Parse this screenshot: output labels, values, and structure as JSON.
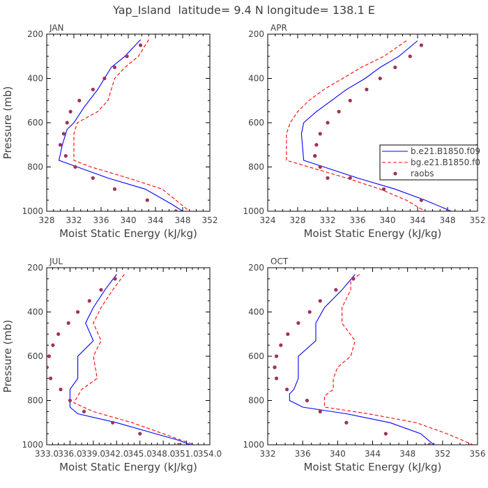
{
  "figure_title": "Yap_Island  latitude= 9.4 N longitude= 138.1 E",
  "legend": {
    "entries": [
      {
        "label": "b.e21.B1850.f09",
        "color": "#0000ff",
        "style": "solid"
      },
      {
        "label": "bg.e21.B1850.f0",
        "color": "#ff0000",
        "style": "dashed"
      },
      {
        "label": "raobs",
        "color": "#a0335a",
        "style": "marker"
      }
    ]
  },
  "chart_data": [
    {
      "type": "line",
      "panel_label": "JAN",
      "xlabel": "Moist Static Energy (kJ/kg)",
      "ylabel": "Pressure (mb)",
      "xlim": [
        328,
        352
      ],
      "ylim": [
        1000,
        200
      ],
      "y_reversed": true,
      "xticks": [
        "328",
        "332",
        "336",
        "340",
        "344",
        "348",
        "352"
      ],
      "yticks": [
        "200",
        "400",
        "600",
        "800",
        "1000"
      ],
      "series": [
        {
          "name": "b.e21.B1850.f09",
          "color": "#0000ff",
          "style": "solid",
          "x": [
            341.8,
            339.5,
            337.5,
            335.5,
            333.5,
            332.0,
            331.0,
            330.3,
            329.8,
            332.5,
            337.0,
            342.5,
            346.5,
            348.0
          ],
          "y": [
            225,
            300,
            350,
            450,
            530,
            600,
            630,
            700,
            770,
            800,
            850,
            900,
            970,
            1000
          ]
        },
        {
          "name": "bg.e21.B1850.f0",
          "color": "#ff0000",
          "style": "dashed",
          "x": [
            343.0,
            341.5,
            339.5,
            338.0,
            337.0,
            335.5,
            332.5,
            332.0,
            332.0,
            334.5,
            340.0,
            345.0,
            349.0
          ],
          "y": [
            225,
            300,
            350,
            400,
            500,
            550,
            600,
            650,
            770,
            800,
            850,
            900,
            1000
          ]
        },
        {
          "name": "raobs",
          "color": "#a0335a",
          "style": "marker",
          "x": [
            341.8,
            339.8,
            338.0,
            336.5,
            334.8,
            332.8,
            331.5,
            331.0,
            330.5,
            330.0,
            330.8,
            332.2,
            334.8,
            338.0,
            342.8,
            347.0
          ],
          "y": [
            250,
            300,
            350,
            400,
            450,
            500,
            550,
            600,
            650,
            700,
            750,
            800,
            850,
            900,
            950,
            1000
          ]
        }
      ]
    },
    {
      "type": "line",
      "panel_label": "APR",
      "xlabel": "Moist Static Energy (kJ/kg)",
      "ylabel": "",
      "xlim": [
        324,
        352
      ],
      "ylim": [
        1000,
        200
      ],
      "y_reversed": true,
      "xticks": [
        "324",
        "328",
        "332",
        "336",
        "340",
        "344",
        "348",
        "352"
      ],
      "yticks": [
        "200",
        "400",
        "600",
        "800",
        "1000"
      ],
      "series": [
        {
          "name": "b.e21.B1850.f09",
          "color": "#0000ff",
          "style": "solid",
          "x": [
            344.0,
            341.5,
            339.0,
            337.0,
            334.5,
            332.5,
            330.5,
            328.8,
            328.5,
            328.8,
            331.5,
            336.0,
            341.0,
            345.0,
            348.5
          ],
          "y": [
            230,
            300,
            350,
            400,
            450,
            500,
            550,
            600,
            650,
            770,
            800,
            850,
            900,
            950,
            1000
          ]
        },
        {
          "name": "bg.e21.B1850.f0",
          "color": "#ff0000",
          "style": "dashed",
          "x": [
            342.5,
            339.5,
            336.5,
            334.0,
            331.5,
            329.5,
            328.0,
            327.0,
            326.5,
            326.5,
            329.5,
            334.5,
            339.0,
            342.5,
            345.0
          ],
          "y": [
            230,
            300,
            350,
            400,
            450,
            500,
            550,
            600,
            650,
            770,
            800,
            850,
            900,
            950,
            1000
          ]
        },
        {
          "name": "raobs",
          "color": "#a0335a",
          "style": "marker",
          "x": [
            344.5,
            343.0,
            341.0,
            339.0,
            337.2,
            335.0,
            333.5,
            332.0,
            331.0,
            330.5,
            330.3,
            330.3,
            331.0,
            332.0,
            335.0,
            339.5,
            344.5,
            348.0
          ],
          "y": [
            250,
            300,
            350,
            400,
            450,
            500,
            550,
            600,
            650,
            700,
            750,
            750,
            800,
            850,
            850,
            900,
            950,
            1000
          ]
        }
      ]
    },
    {
      "type": "line",
      "panel_label": "JUL",
      "xlabel": "Moist Static Energy (kJ/kg)",
      "ylabel": "Pressure (mb)",
      "xlim": [
        333.0,
        354.0
      ],
      "ylim": [
        1000,
        200
      ],
      "y_reversed": true,
      "xticks": [
        "333.0",
        "336.0",
        "339.0",
        "342.0",
        "345.0",
        "348.0",
        "351.0",
        "354.0"
      ],
      "yticks": [
        "200",
        "400",
        "600",
        "800",
        "1000"
      ],
      "series": [
        {
          "name": "b.e21.B1850.f09",
          "color": "#0000ff",
          "style": "solid",
          "x": [
            342.0,
            340.5,
            339.0,
            338.0,
            339.0,
            337.0,
            337.0,
            336.0,
            336.0,
            337.0,
            342.0,
            346.0,
            350.0,
            351.5
          ],
          "y": [
            230,
            300,
            380,
            450,
            530,
            600,
            700,
            750,
            830,
            860,
            900,
            940,
            980,
            1000
          ]
        },
        {
          "name": "bg.e21.B1850.f0",
          "color": "#ff0000",
          "style": "dashed",
          "x": [
            343.0,
            341.5,
            340.0,
            339.0,
            340.0,
            339.0,
            339.5,
            337.5,
            336.5,
            339.0,
            344.0,
            348.0,
            352.0
          ],
          "y": [
            230,
            300,
            380,
            450,
            530,
            600,
            700,
            750,
            810,
            850,
            900,
            950,
            1000
          ]
        },
        {
          "name": "raobs",
          "color": "#a0335a",
          "style": "marker",
          "x": [
            341.8,
            340.0,
            338.5,
            337.0,
            335.8,
            334.5,
            333.8,
            333.3,
            333.0,
            333.0,
            333.5,
            334.8,
            336.0,
            337.8,
            341.5,
            345.0,
            350.0
          ],
          "y": [
            250,
            300,
            350,
            400,
            450,
            500,
            550,
            600,
            650,
            650,
            700,
            750,
            800,
            850,
            900,
            950,
            1000
          ]
        }
      ]
    },
    {
      "type": "line",
      "panel_label": "OCT",
      "xlabel": "Moist Static Energy (kJ/kg)",
      "ylabel": "",
      "xlim": [
        332,
        356
      ],
      "ylim": [
        1000,
        200
      ],
      "y_reversed": true,
      "xticks": [
        "332",
        "336",
        "340",
        "344",
        "348",
        "352",
        "356"
      ],
      "yticks": [
        "200",
        "400",
        "600",
        "800",
        "1000"
      ],
      "series": [
        {
          "name": "b.e21.B1850.f09",
          "color": "#0000ff",
          "style": "solid",
          "x": [
            342.0,
            340.5,
            338.5,
            337.5,
            337.5,
            335.5,
            335.5,
            335.0,
            334.5,
            334.5,
            336.0,
            341.0,
            346.0,
            349.5,
            351.0
          ],
          "y": [
            230,
            300,
            380,
            450,
            530,
            600,
            700,
            750,
            770,
            800,
            830,
            860,
            900,
            950,
            1000
          ]
        },
        {
          "name": "bg.e21.B1850.f0",
          "color": "#ff0000",
          "style": "dashed",
          "x": [
            342.5,
            341.5,
            341.5,
            340.5,
            340.5,
            342.0,
            341.5,
            340.0,
            339.5,
            339.5,
            338.5,
            338.5,
            343.5,
            349.0,
            352.5,
            355.5
          ],
          "y": [
            230,
            260,
            300,
            380,
            450,
            530,
            600,
            650,
            700,
            750,
            780,
            830,
            860,
            900,
            950,
            1000
          ]
        },
        {
          "name": "raobs",
          "color": "#a0335a",
          "style": "marker",
          "x": [
            341.8,
            339.8,
            338.0,
            336.8,
            335.5,
            334.3,
            333.5,
            333.0,
            332.8,
            332.8,
            333.0,
            334.2,
            336.5,
            338.0,
            341.0,
            345.5,
            350.5
          ],
          "y": [
            250,
            300,
            350,
            400,
            450,
            500,
            550,
            600,
            650,
            650,
            700,
            750,
            800,
            850,
            900,
            950,
            1000
          ]
        }
      ]
    }
  ]
}
